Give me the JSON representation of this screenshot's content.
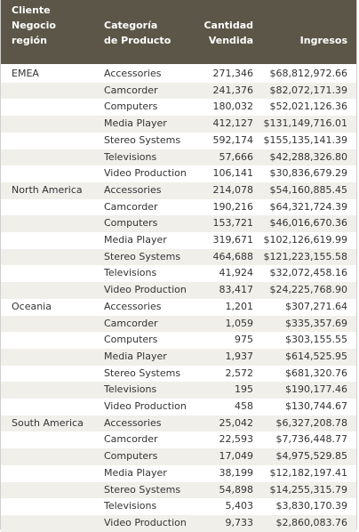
{
  "header": {
    "region": [
      "Cliente",
      "Negocio",
      "región"
    ],
    "category": [
      "Categoría",
      "de Producto"
    ],
    "quantity": [
      "Cantidad",
      "Vendida"
    ],
    "revenue": [
      "Ingresos"
    ]
  },
  "groups": [
    {
      "region": "EMEA",
      "rows": [
        [
          "Accessories",
          "271,346",
          "$68,812,972.66"
        ],
        [
          "Camcorder",
          "241,376",
          "$82,072,171.39"
        ],
        [
          "Computers",
          "180,032",
          "$52,021,126.36"
        ],
        [
          "Media Player",
          "412,127",
          "$131,149,716.01"
        ],
        [
          "Stereo Systems",
          "592,174",
          "$155,135,141.39"
        ],
        [
          "Televisions",
          "57,666",
          "$42,288,326.80"
        ],
        [
          "Video Production",
          "106,141",
          "$30,836,679.29"
        ]
      ]
    },
    {
      "region": "North America",
      "rows": [
        [
          "Accessories",
          "214,078",
          "$54,160,885.45"
        ],
        [
          "Camcorder",
          "190,216",
          "$64,321,724.39"
        ],
        [
          "Computers",
          "153,721",
          "$46,016,670.36"
        ],
        [
          "Media Player",
          "319,671",
          "$102,126,619.99"
        ],
        [
          "Stereo Systems",
          "464,688",
          "$121,223,155.58"
        ],
        [
          "Televisions",
          "41,924",
          "$32,072,458.16"
        ],
        [
          "Video Production",
          "83,417",
          "$24,225,768.90"
        ]
      ]
    },
    {
      "region": "Oceania",
      "rows": [
        [
          "Accessories",
          "1,201",
          "$307,271.64"
        ],
        [
          "Camcorder",
          "1,059",
          "$335,357.69"
        ],
        [
          "Computers",
          "975",
          "$303,155.55"
        ],
        [
          "Media Player",
          "1,937",
          "$614,525.95"
        ],
        [
          "Stereo Systems",
          "2,572",
          "$681,320.76"
        ],
        [
          "Televisions",
          "195",
          "$190,177.46"
        ],
        [
          "Video Production",
          "458",
          "$130,744.67"
        ]
      ]
    },
    {
      "region": "South America",
      "rows": [
        [
          "Accessories",
          "25,042",
          "$6,327,208.78"
        ],
        [
          "Camcorder",
          "22,593",
          "$7,736,448.77"
        ],
        [
          "Computers",
          "17,049",
          "$4,975,529.85"
        ],
        [
          "Media Player",
          "38,199",
          "$12,182,197.41"
        ],
        [
          "Stereo Systems",
          "54,898",
          "$14,255,315.79"
        ],
        [
          "Televisions",
          "5,403",
          "$3,830,170.39"
        ],
        [
          "Video Production",
          "9,733",
          "$2,860,083.76"
        ]
      ]
    }
  ]
}
